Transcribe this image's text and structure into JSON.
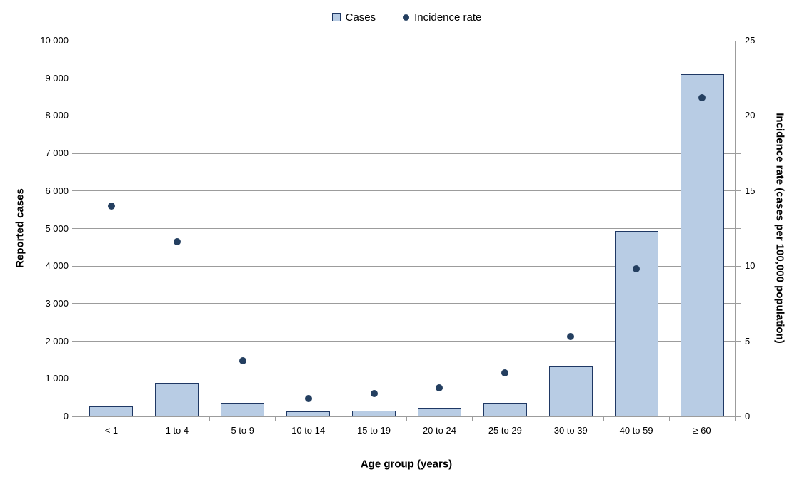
{
  "colors": {
    "bar_fill": "#B8CCE4",
    "bar_border": "#1F3864",
    "dot": "#243F60",
    "gridline": "#9C9C9C",
    "axis": "#9C9C9C",
    "text": "#000000",
    "background": "#FFFFFF"
  },
  "chart_data": {
    "type": "bar",
    "subtype": "combo bar + scatter, dual y-axis",
    "title": "",
    "categories": [
      "< 1",
      "1 to 4",
      "5 to 9",
      "10 to 14",
      "15 to 19",
      "20 to 24",
      "25 to 29",
      "30 to 39",
      "40 to 59",
      "≥ 60"
    ],
    "series": [
      {
        "name": "Cases",
        "type": "bar",
        "axis": "left",
        "marker": "square",
        "values": [
          270,
          900,
          360,
          130,
          160,
          230,
          360,
          1320,
          4940,
          9100
        ]
      },
      {
        "name": "Incidence rate",
        "type": "scatter",
        "axis": "right",
        "marker": "circle",
        "values": [
          14.0,
          11.6,
          3.7,
          1.2,
          1.5,
          1.9,
          2.9,
          5.3,
          9.8,
          21.2
        ]
      }
    ],
    "x_axis": {
      "label": "Age group (years)"
    },
    "left_axis": {
      "label": "Reported cases",
      "min": 0,
      "max": 10000,
      "tick_interval": 1000,
      "tick_labels": [
        "0",
        "1 000",
        "2 000",
        "3 000",
        "4 000",
        "5 000",
        "6 000",
        "7 000",
        "8 000",
        "9 000",
        "10 000"
      ]
    },
    "right_axis": {
      "label": "Incidence rate (cases per 100,000 population)",
      "min": 0,
      "max": 25,
      "tick_interval": 5,
      "tick_labels": [
        "0",
        "5",
        "10",
        "15",
        "20",
        "25"
      ]
    },
    "legend": {
      "position": "top",
      "entries": [
        "Cases",
        "Incidence rate"
      ]
    },
    "grid": true
  }
}
